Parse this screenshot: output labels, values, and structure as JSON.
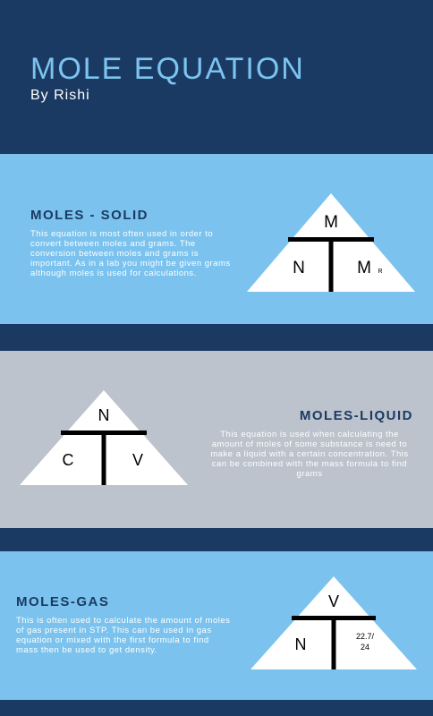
{
  "header": {
    "title": "MOLE EQUATION",
    "byline": "By Rishi"
  },
  "sections": [
    {
      "title": "MOLES - SOLID",
      "text": "This equation is most often used in order to convert between moles and grams. The conversion between moles and grams is important. As in a lab you might be given grams although moles is used for calculations.",
      "triangle": {
        "top": "M",
        "left": "N",
        "right": "M",
        "right_sub": "R"
      }
    },
    {
      "title": "MOLES-LIQUID",
      "text": "This equation is used when calculating the amount of moles of some substance is need to make a liquid with a certain concentration. This can be combined with the mass formula to find grams",
      "triangle": {
        "top": "N",
        "left": "C",
        "right": "V"
      }
    },
    {
      "title": "MOLES-GAS",
      "text": "This is often used to calculate the amount of moles of gas present in STP. This can be used in gas equation or mixed with the first formula to find mass then be used to get density.",
      "triangle": {
        "top": "V",
        "left": "N",
        "right_line1": "22.7/",
        "right_line2": "24"
      }
    }
  ],
  "colors": {
    "navy": "#1b3a63",
    "light_blue": "#7bc3ee",
    "grey": "#bcc3cd",
    "title_blue": "#7cc4ef"
  }
}
